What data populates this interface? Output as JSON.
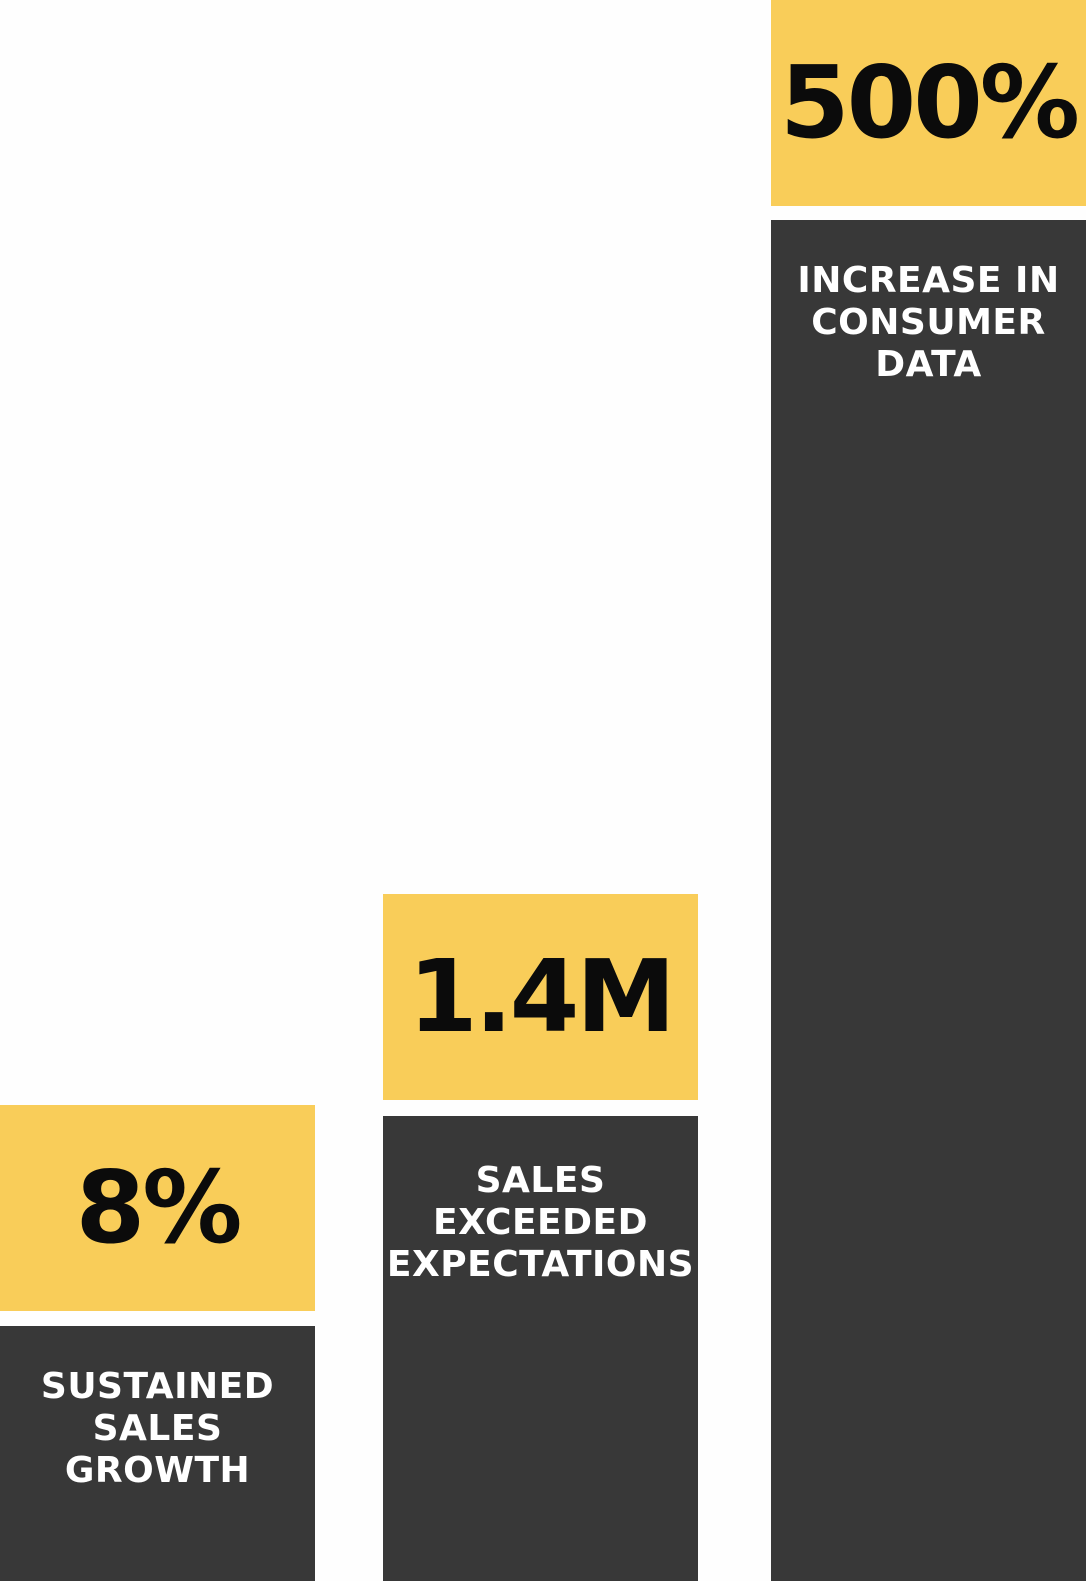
{
  "stats": [
    {
      "value": "8%",
      "label": [
        "SUSTAINED",
        "SALES",
        "GROWTH"
      ]
    },
    {
      "value": "1.4M",
      "label": [
        "SALES",
        "EXCEEDED",
        "EXPECTATIONS"
      ]
    },
    {
      "value": "500%",
      "label": [
        "INCREASE IN",
        "CONSUMER",
        "DATA"
      ]
    }
  ],
  "colors": {
    "accent": "#f9cd59",
    "bar": "#383838",
    "value_text": "#0b0b0b",
    "label_text": "#ffffff"
  },
  "chart_data": {
    "type": "bar",
    "categories": [
      "SUSTAINED SALES GROWTH",
      "SALES EXCEEDED EXPECTATIONS",
      "INCREASE IN CONSUMER DATA"
    ],
    "value_labels": [
      "8%",
      "1.4M",
      "500%"
    ],
    "title": "",
    "xlabel": "",
    "ylabel": ""
  }
}
